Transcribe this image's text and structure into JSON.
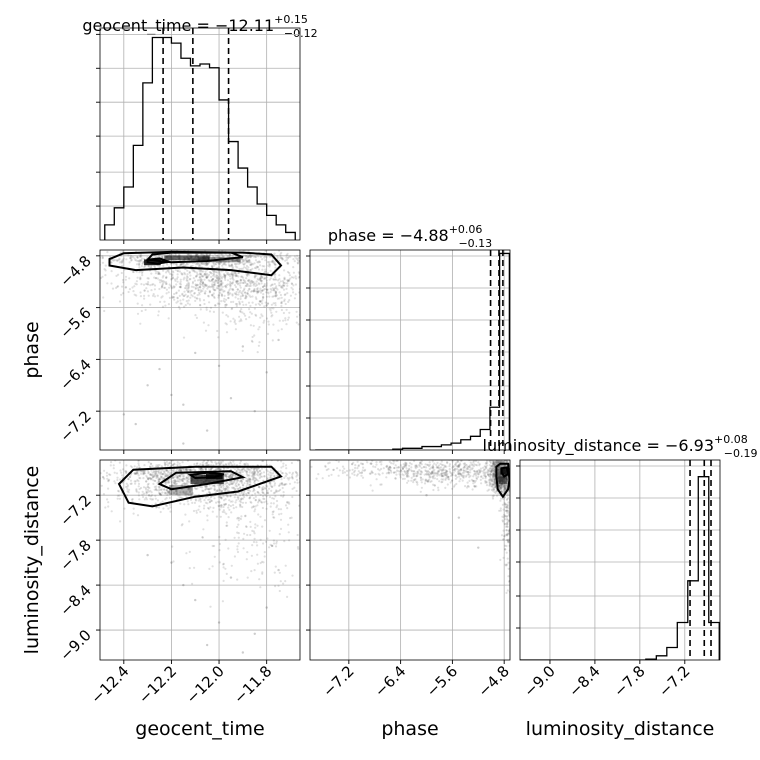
{
  "figure": {
    "type": "corner-plot",
    "colors": {
      "ink": "#000000",
      "grid": "#b0b0b0",
      "points": "#555555"
    }
  },
  "chart_data": [
    {
      "type": "histogram",
      "name": "geocent_time",
      "title": {
        "param": "geocent_time",
        "median": "−12.11",
        "plus": "+0.15",
        "minus": "−0.12"
      },
      "xlim": [
        -12.5,
        -11.66
      ],
      "bin_edges": [
        -12.48,
        -12.44,
        -12.4,
        -12.36,
        -12.32,
        -12.28,
        -12.24,
        -12.2,
        -12.16,
        -12.12,
        -12.08,
        -12.04,
        -12.0,
        -11.96,
        -11.92,
        -11.88,
        -11.84,
        -11.8,
        -11.76,
        -11.72,
        -11.68
      ],
      "counts": [
        8,
        17,
        28,
        50,
        83,
        107,
        107,
        104,
        96,
        92,
        93,
        91,
        74,
        52,
        38,
        28,
        19,
        13,
        8,
        4
      ],
      "ymax": 112,
      "quantiles": [
        -12.235,
        -12.11,
        -11.96
      ],
      "xticks": [
        -12.4,
        -12.2,
        -12.0,
        -11.8
      ],
      "xtick_labels": [
        "−12.4",
        "−12.2",
        "−12.0",
        "−11.8"
      ],
      "xlabel": "geocent_time"
    },
    {
      "type": "histogram",
      "name": "phase",
      "title": {
        "param": "phase",
        "median": "−4.88",
        "plus": "+0.06",
        "minus": "−0.13"
      },
      "xlim": [
        -7.8,
        -4.71
      ],
      "bin_edges": [
        -7.72,
        -7.57,
        -7.42,
        -7.27,
        -7.12,
        -6.97,
        -6.82,
        -6.67,
        -6.52,
        -6.37,
        -6.22,
        -6.07,
        -5.92,
        -5.77,
        -5.62,
        -5.47,
        -5.32,
        -5.17,
        -5.02,
        -4.87,
        -4.72
      ],
      "counts": [
        0,
        0,
        0,
        0,
        0,
        0,
        0,
        0,
        0.5,
        1,
        1,
        2,
        2,
        3,
        4,
        6,
        8,
        12,
        25,
        115
      ],
      "ymax": 117,
      "quantiles": [
        -5.01,
        -4.88,
        -4.82
      ],
      "xticks": [
        -7.2,
        -6.4,
        -5.6,
        -4.8
      ],
      "xtick_labels": [
        "−7.2",
        "−6.4",
        "−5.6",
        "−4.8"
      ],
      "xlabel": "phase"
    },
    {
      "type": "histogram",
      "name": "luminosity_distance",
      "title": {
        "param": "luminosity_distance",
        "median": "−6.93",
        "plus": "+0.08",
        "minus": "−0.19"
      },
      "xlim": [
        -9.4,
        -6.73
      ],
      "bin_edges": [
        -9.4,
        -9.26,
        -9.12,
        -8.98,
        -8.84,
        -8.7,
        -8.56,
        -8.42,
        -8.28,
        -8.14,
        -8.0,
        -7.86,
        -7.72,
        -7.58,
        -7.44,
        -7.3,
        -7.16,
        -7.02,
        -6.88,
        -6.74
      ],
      "counts": [
        0,
        0,
        0,
        0,
        0,
        0,
        0,
        0,
        0,
        0,
        0,
        0,
        0.2,
        1,
        3,
        9,
        19,
        44,
        9
      ],
      "ymax": 48,
      "quantiles": [
        -7.13,
        -6.94,
        -6.85
      ],
      "xticks": [
        -9.0,
        -8.4,
        -7.8,
        -7.2
      ],
      "xtick_labels": [
        "−9.0",
        "−8.4",
        "−7.8",
        "−7.2"
      ],
      "xlabel": "luminosity_distance"
    },
    {
      "type": "scatter",
      "name": "geocent_time vs phase",
      "xlim": [
        -12.5,
        -11.66
      ],
      "ylim": [
        -7.8,
        -4.71
      ],
      "yticks": [
        -7.2,
        -6.4,
        -5.6,
        -4.8
      ],
      "ytick_labels": [
        "−7.2",
        "−6.4",
        "−5.6",
        "−4.8"
      ],
      "ylabel": "phase",
      "dense_clusters": [
        {
          "x": -12.0,
          "y": -5.15,
          "sx": 0.22,
          "sy": 0.22,
          "n": 1100
        },
        {
          "x": -12.1,
          "y": -4.85,
          "sx": 0.22,
          "sy": 0.05,
          "n": 500
        },
        {
          "x": -11.85,
          "y": -5.5,
          "sx": 0.15,
          "sy": 0.35,
          "n": 250
        }
      ],
      "outliers": [
        [
          -12.3,
          -6.8
        ],
        [
          -12.2,
          -6.95
        ],
        [
          -12.15,
          -7.1
        ],
        [
          -12.0,
          -6.5
        ],
        [
          -11.95,
          -7.0
        ],
        [
          -12.35,
          -7.4
        ],
        [
          -11.9,
          -6.2
        ],
        [
          -12.1,
          -6.3
        ],
        [
          -12.4,
          -7.25
        ],
        [
          -11.8,
          -6.6
        ],
        [
          -12.05,
          -7.5
        ],
        [
          -12.25,
          -6.55
        ],
        [
          -11.75,
          -6.1
        ],
        [
          -12.15,
          -7.7
        ],
        [
          -11.85,
          -7.2
        ]
      ],
      "shade_cells": [
        {
          "x": -12.135,
          "y": -4.83,
          "w": 0.19,
          "h": 0.07,
          "level": 0.7
        },
        {
          "x": -12.28,
          "y": -4.9,
          "w": 0.07,
          "h": 0.09,
          "level": 1.0
        },
        {
          "x": -12.0,
          "y": -4.86,
          "w": 0.18,
          "h": 0.08,
          "level": 0.45
        }
      ],
      "contours": [
        [
          [
            -12.46,
            -4.85
          ],
          [
            -12.4,
            -4.76
          ],
          [
            -12.2,
            -4.74
          ],
          [
            -11.9,
            -4.75
          ],
          [
            -11.78,
            -4.78
          ],
          [
            -11.74,
            -4.95
          ],
          [
            -11.78,
            -5.1
          ],
          [
            -11.95,
            -5.02
          ],
          [
            -12.15,
            -4.98
          ],
          [
            -12.35,
            -5.02
          ],
          [
            -12.46,
            -4.95
          ],
          [
            -12.46,
            -4.85
          ]
        ],
        [
          [
            -12.28,
            -4.78
          ],
          [
            -12.2,
            -4.75
          ],
          [
            -11.95,
            -4.75
          ],
          [
            -11.9,
            -4.82
          ],
          [
            -12.05,
            -4.88
          ],
          [
            -12.2,
            -4.9
          ],
          [
            -12.3,
            -4.86
          ],
          [
            -12.28,
            -4.78
          ]
        ],
        [
          [
            -12.3,
            -4.86
          ],
          [
            -12.25,
            -4.84
          ],
          [
            -12.21,
            -4.89
          ],
          [
            -12.26,
            -4.92
          ],
          [
            -12.3,
            -4.9
          ],
          [
            -12.3,
            -4.86
          ]
        ]
      ]
    },
    {
      "type": "scatter",
      "name": "geocent_time vs luminosity_distance",
      "xlim": [
        -12.5,
        -11.66
      ],
      "ylim": [
        -9.4,
        -6.73
      ],
      "yticks": [
        -9.0,
        -8.4,
        -7.8,
        -7.2
      ],
      "ytick_labels": [
        "−9.0",
        "−8.4",
        "−7.8",
        "−7.2"
      ],
      "ylabel": "luminosity_distance",
      "xticks": [
        -12.4,
        -12.2,
        -12.0,
        -11.8
      ],
      "xtick_labels": [
        "−12.4",
        "−12.2",
        "−12.0",
        "−11.8"
      ],
      "xlabel": "geocent_time",
      "dense_clusters": [
        {
          "x": -12.05,
          "y": -7.05,
          "sx": 0.22,
          "sy": 0.17,
          "n": 1100
        },
        {
          "x": -12.1,
          "y": -6.9,
          "sx": 0.18,
          "sy": 0.07,
          "n": 500
        },
        {
          "x": -11.85,
          "y": -7.6,
          "sx": 0.15,
          "sy": 0.4,
          "n": 250
        }
      ],
      "outliers": [
        [
          -12.0,
          -8.9
        ],
        [
          -11.9,
          -9.3
        ],
        [
          -12.1,
          -8.6
        ],
        [
          -11.95,
          -8.3
        ],
        [
          -12.2,
          -8.1
        ],
        [
          -11.8,
          -8.7
        ],
        [
          -12.3,
          -8.0
        ],
        [
          -11.85,
          -9.05
        ],
        [
          -12.05,
          -9.2
        ],
        [
          -11.75,
          -8.2
        ],
        [
          -12.15,
          -8.4
        ]
      ],
      "shade_cells": [
        {
          "x": -12.16,
          "y": -7.13,
          "w": 0.1,
          "h": 0.13,
          "level": 0.35
        },
        {
          "x": -12.05,
          "y": -6.99,
          "w": 0.14,
          "h": 0.12,
          "level": 0.8
        },
        {
          "x": -12.02,
          "y": -6.95,
          "w": 0.07,
          "h": 0.07,
          "level": 1.0
        }
      ],
      "contours": [
        [
          [
            -12.42,
            -7.05
          ],
          [
            -12.36,
            -6.86
          ],
          [
            -12.1,
            -6.82
          ],
          [
            -11.78,
            -6.82
          ],
          [
            -11.74,
            -6.95
          ],
          [
            -11.92,
            -7.15
          ],
          [
            -12.1,
            -7.22
          ],
          [
            -12.28,
            -7.35
          ],
          [
            -12.38,
            -7.3
          ],
          [
            -12.42,
            -7.05
          ]
        ],
        [
          [
            -12.25,
            -7.05
          ],
          [
            -12.18,
            -6.9
          ],
          [
            -11.95,
            -6.88
          ],
          [
            -11.9,
            -6.96
          ],
          [
            -12.05,
            -7.05
          ],
          [
            -12.2,
            -7.12
          ],
          [
            -12.25,
            -7.05
          ]
        ],
        [
          [
            -12.12,
            -6.93
          ],
          [
            -12.05,
            -6.9
          ],
          [
            -11.98,
            -6.92
          ],
          [
            -12.02,
            -6.96
          ],
          [
            -12.1,
            -6.97
          ],
          [
            -12.12,
            -6.93
          ]
        ]
      ]
    },
    {
      "type": "scatter",
      "name": "phase vs luminosity_distance",
      "xlim": [
        -7.8,
        -4.71
      ],
      "ylim": [
        -9.4,
        -6.73
      ],
      "xticks": [
        -7.2,
        -6.4,
        -5.6,
        -4.8
      ],
      "xtick_labels": [
        "−7.2",
        "−6.4",
        "−5.6",
        "−4.8"
      ],
      "xlabel": "phase",
      "dense_clusters": [
        {
          "x": -4.85,
          "y": -6.92,
          "sx": 0.08,
          "sy": 0.12,
          "n": 900
        },
        {
          "x": -5.4,
          "y": -6.9,
          "sx": 0.55,
          "sy": 0.1,
          "n": 500
        },
        {
          "x": -6.5,
          "y": -6.85,
          "sx": 0.6,
          "sy": 0.07,
          "n": 220
        },
        {
          "x": -4.75,
          "y": -7.5,
          "sx": 0.05,
          "sy": 0.45,
          "n": 160
        }
      ],
      "outliers": [
        [
          -5.5,
          -7.5
        ],
        [
          -6.0,
          -7.2
        ],
        [
          -7.0,
          -6.9
        ],
        [
          -5.2,
          -7.9
        ],
        [
          -6.3,
          -6.95
        ]
      ],
      "shade_cells": [
        {
          "x": -4.8,
          "y": -6.88,
          "w": 0.12,
          "h": 0.09,
          "level": 0.95
        },
        {
          "x": -4.82,
          "y": -7.0,
          "w": 0.14,
          "h": 0.1,
          "level": 0.55
        }
      ],
      "contours": [
        [
          [
            -4.92,
            -6.82
          ],
          [
            -4.86,
            -6.78
          ],
          [
            -4.74,
            -6.78
          ],
          [
            -4.72,
            -7.0
          ],
          [
            -4.74,
            -7.12
          ],
          [
            -4.82,
            -7.22
          ],
          [
            -4.9,
            -7.12
          ],
          [
            -4.92,
            -6.95
          ],
          [
            -4.92,
            -6.82
          ]
        ],
        [
          [
            -4.84,
            -6.84
          ],
          [
            -4.76,
            -6.83
          ],
          [
            -4.74,
            -6.92
          ],
          [
            -4.8,
            -6.95
          ],
          [
            -4.84,
            -6.9
          ],
          [
            -4.84,
            -6.84
          ]
        ]
      ]
    }
  ]
}
